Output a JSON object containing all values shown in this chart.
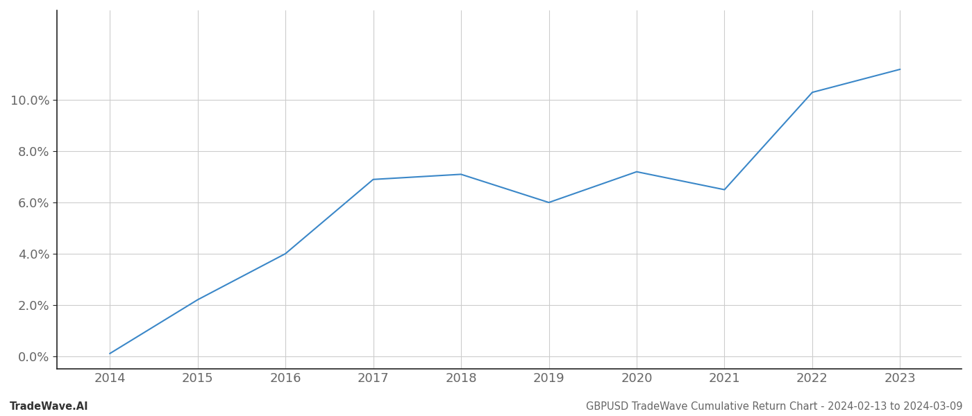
{
  "years": [
    2014,
    2015,
    2016,
    2017,
    2018,
    2019,
    2020,
    2021,
    2022,
    2023
  ],
  "values": [
    0.001,
    0.022,
    0.04,
    0.069,
    0.071,
    0.06,
    0.072,
    0.065,
    0.103,
    0.112
  ],
  "line_color": "#3a87c8",
  "line_width": 1.5,
  "background_color": "#ffffff",
  "grid_color": "#cccccc",
  "ylim": [
    -0.005,
    0.135
  ],
  "yticks": [
    0.0,
    0.02,
    0.04,
    0.06,
    0.08,
    0.1
  ],
  "xlim_min": 2013.4,
  "xlim_max": 2023.7,
  "footer_left": "TradeWave.AI",
  "footer_right": "GBPUSD TradeWave Cumulative Return Chart - 2024-02-13 to 2024-03-09",
  "footer_fontsize": 10.5,
  "tick_label_color": "#666666",
  "spine_color": "#222222",
  "tick_fontsize": 13
}
